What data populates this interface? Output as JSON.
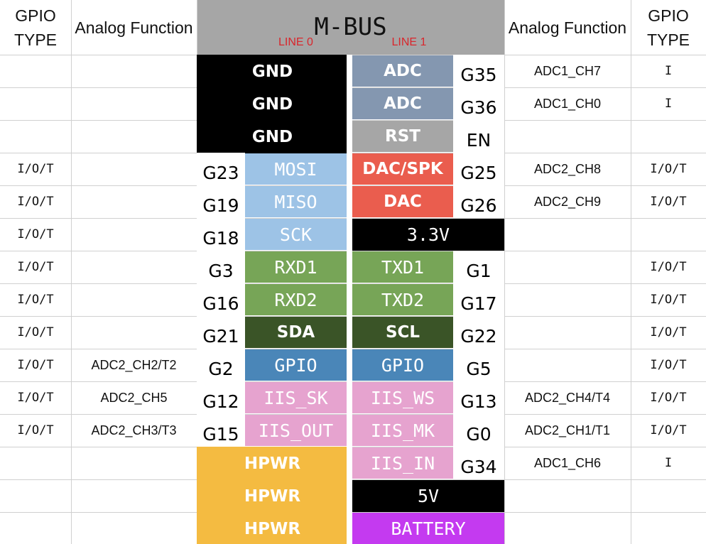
{
  "header": {
    "left_type": "GPIO TYPE",
    "left_analog": "Analog Function",
    "title": "M-BUS",
    "line0": "LINE 0",
    "line1": "LINE 1",
    "right_analog": "Analog Function",
    "right_type": "GPIO TYPE",
    "title_bg": "#a6a6a6"
  },
  "rows": [
    {
      "lt": "",
      "la": "",
      "lp": "",
      "ll": "GND",
      "lc": "#000000",
      "rl": "ADC",
      "rc": "#8497b0",
      "rp": "G35",
      "ra": "ADC1_CH7",
      "rt": "I"
    },
    {
      "lt": "",
      "la": "",
      "lp": "",
      "ll": "GND",
      "lc": "#000000",
      "rl": "ADC",
      "rc": "#8497b0",
      "rp": "G36",
      "ra": "ADC1_CH0",
      "rt": "I"
    },
    {
      "lt": "",
      "la": "",
      "lp": "",
      "ll": "GND",
      "lc": "#000000",
      "rl": "RST",
      "rc": "#a6a6a6",
      "rp": "EN",
      "ra": "",
      "rt": ""
    },
    {
      "lt": "I/O/T",
      "la": "",
      "lp": "G23",
      "ll": "MOSI",
      "lc": "#9dc3e6",
      "rl": "DAC/SPK",
      "rc": "#ea5d4e",
      "rp": "G25",
      "ra": "ADC2_CH8",
      "rt": "I/O/T"
    },
    {
      "lt": "I/O/T",
      "la": "",
      "lp": "G19",
      "ll": "MISO",
      "lc": "#9dc3e6",
      "rl": "DAC",
      "rc": "#ea5d4e",
      "rp": "G26",
      "ra": "ADC2_CH9",
      "rt": "I/O/T"
    },
    {
      "lt": "I/O/T",
      "la": "",
      "lp": "G18",
      "ll": "SCK",
      "lc": "#9dc3e6",
      "rl": "3.3V",
      "rc": "#000000",
      "rp": "",
      "ra": "",
      "rt": ""
    },
    {
      "lt": "I/O/T",
      "la": "",
      "lp": "G3",
      "ll": "RXD1",
      "lc": "#77a557",
      "rl": "TXD1",
      "rc": "#77a557",
      "rp": "G1",
      "ra": "",
      "rt": "I/O/T"
    },
    {
      "lt": "I/O/T",
      "la": "",
      "lp": "G16",
      "ll": "RXD2",
      "lc": "#77a557",
      "rl": "TXD2",
      "rc": "#77a557",
      "rp": "G17",
      "ra": "",
      "rt": "I/O/T"
    },
    {
      "lt": "I/O/T",
      "la": "",
      "lp": "G21",
      "ll": "SDA",
      "lc": "#3a5427",
      "rl": "SCL",
      "rc": "#3a5427",
      "rp": "G22",
      "ra": "",
      "rt": "I/O/T"
    },
    {
      "lt": "I/O/T",
      "la": "ADC2_CH2/T2",
      "lp": "G2",
      "ll": "GPIO",
      "lc": "#4a86b8",
      "rl": "GPIO",
      "rc": "#4a86b8",
      "rp": "G5",
      "ra": "",
      "rt": "I/O/T"
    },
    {
      "lt": "I/O/T",
      "la": "ADC2_CH5",
      "lp": "G12",
      "ll": "IIS_SK",
      "lc": "#e6a3cf",
      "rl": "IIS_WS",
      "rc": "#e6a3cf",
      "rp": "G13",
      "ra": "ADC2_CH4/T4",
      "rt": "I/O/T"
    },
    {
      "lt": "I/O/T",
      "la": "ADC2_CH3/T3",
      "lp": "G15",
      "ll": "IIS_OUT",
      "lc": "#e6a3cf",
      "rl": "IIS_MK",
      "rc": "#e6a3cf",
      "rp": "G0",
      "ra": "ADC2_CH1/T1",
      "rt": "I/O/T"
    },
    {
      "lt": "",
      "la": "",
      "lp": "",
      "ll": "HPWR",
      "lc": "#f4bb41",
      "rl": "IIS_IN",
      "rc": "#e6a3cf",
      "rp": "G34",
      "ra": "ADC1_CH6",
      "rt": "I"
    },
    {
      "lt": "",
      "la": "",
      "lp": "",
      "ll": "HPWR",
      "lc": "#f4bb41",
      "rl": "5V",
      "rc": "#000000",
      "rp": "",
      "ra": "",
      "rt": ""
    },
    {
      "lt": "",
      "la": "",
      "lp": "",
      "ll": "HPWR",
      "lc": "#f4bb41",
      "rl": "BATTERY",
      "rc": "#c43af0",
      "rp": "",
      "ra": "",
      "rt": ""
    }
  ]
}
